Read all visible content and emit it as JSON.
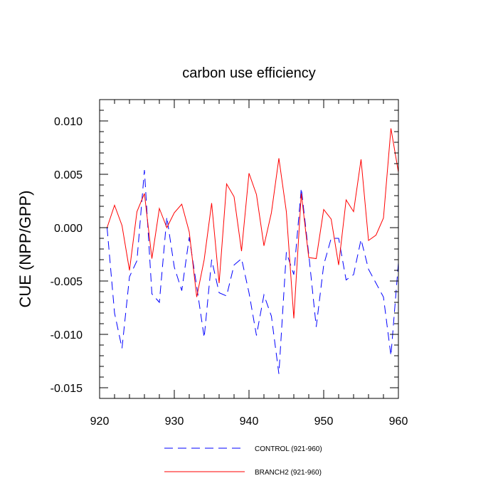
{
  "chart_data": {
    "type": "line",
    "title": "carbon use efficiency",
    "xlabel": "",
    "ylabel": "CUE  (NPP/GPP)",
    "xlim": [
      921,
      960
    ],
    "ylim": [
      -0.016,
      0.012
    ],
    "xticks": [
      920,
      930,
      940,
      950,
      960
    ],
    "xtick_labels": [
      "920",
      "930",
      "940",
      "950",
      "960"
    ],
    "yticks": [
      0.01,
      0.005,
      0.0,
      -0.005,
      -0.01,
      -0.015
    ],
    "ytick_labels": [
      "0.010",
      "0.005",
      "0.000",
      "-0.005",
      "-0.010",
      "-0.015"
    ],
    "grid": false,
    "legend_position": "bottom",
    "x": [
      921,
      922,
      923,
      924,
      925,
      926,
      927,
      928,
      929,
      930,
      931,
      932,
      933,
      934,
      935,
      936,
      937,
      938,
      939,
      940,
      941,
      942,
      943,
      944,
      945,
      946,
      947,
      948,
      949,
      950,
      951,
      952,
      953,
      954,
      955,
      956,
      957,
      958,
      959,
      960
    ],
    "series": [
      {
        "name": "CONTROL (921-960)",
        "color": "#0000ff",
        "dash": "dashed",
        "values": [
          0.0,
          -0.008,
          -0.0113,
          -0.0046,
          -0.0031,
          0.0054,
          -0.0062,
          -0.007,
          0.001,
          -0.0037,
          -0.0059,
          -0.0009,
          -0.0055,
          -0.0103,
          -0.003,
          -0.0061,
          -0.0064,
          -0.0035,
          -0.0029,
          -0.0061,
          -0.0101,
          -0.0063,
          -0.0083,
          -0.0137,
          -0.0023,
          -0.0044,
          0.0037,
          -0.0025,
          -0.0093,
          -0.0035,
          -0.001,
          -0.001,
          -0.0049,
          -0.0044,
          -0.0011,
          -0.0039,
          -0.0052,
          -0.0065,
          -0.012,
          -0.0033
        ]
      },
      {
        "name": "BRANCH2 (921-960)",
        "color": "#ff0000",
        "dash": "solid",
        "values": [
          0.0,
          0.0021,
          0.0002,
          -0.004,
          0.0015,
          0.0032,
          -0.0029,
          0.0018,
          0.0,
          0.0014,
          0.0022,
          -0.0004,
          -0.0065,
          -0.003,
          0.0023,
          -0.0052,
          0.0041,
          0.0029,
          -0.0022,
          0.0051,
          0.0031,
          -0.0017,
          0.0014,
          0.0065,
          0.0015,
          -0.0085,
          0.0032,
          -0.0028,
          -0.0029,
          0.0017,
          0.0008,
          -0.0035,
          0.0026,
          0.0015,
          0.0064,
          -0.0012,
          -0.0007,
          0.0009,
          0.0093,
          0.0052
        ]
      }
    ]
  }
}
